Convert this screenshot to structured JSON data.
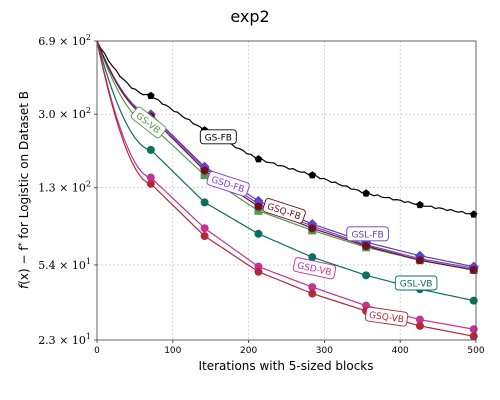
{
  "chart_data": {
    "type": "line",
    "title": "exp2",
    "xlabel": "Iterations with 5-sized blocks",
    "ylabel": "f(x) − f* for Logistic on Dataset B",
    "ylabel_parts": {
      "a": "f",
      "b": "(x) − f",
      "c": "*",
      "d": " for Logistic on Dataset B"
    },
    "xlim": [
      0,
      500
    ],
    "ylim": [
      23,
      690
    ],
    "yscale": "log",
    "grid": true,
    "x_ticks": [
      {
        "value": 0,
        "label": "0"
      },
      {
        "value": 100,
        "label": "100"
      },
      {
        "value": 200,
        "label": "200"
      },
      {
        "value": 300,
        "label": "300"
      },
      {
        "value": 400,
        "label": "400"
      },
      {
        "value": 500,
        "label": "500"
      }
    ],
    "y_ticks": [
      {
        "value": 690,
        "mantissa": "6.9",
        "exp": "2"
      },
      {
        "value": 300,
        "mantissa": "3.0",
        "exp": "2"
      },
      {
        "value": 130,
        "mantissa": "1.3",
        "exp": "2"
      },
      {
        "value": 54,
        "mantissa": "5.4",
        "exp": "1"
      },
      {
        "value": 23,
        "mantissa": "2.3",
        "exp": "1"
      }
    ],
    "series": [
      {
        "name": "GS-FB",
        "color": "#000000",
        "marker": "pentagon",
        "label_x": 160,
        "label_y": 232,
        "x": [
          0,
          71,
          142,
          213,
          284,
          355,
          426,
          497
        ],
        "values": [
          690,
          370,
          250,
          180,
          150,
          122,
          107,
          96
        ]
      },
      {
        "name": "GS-VB",
        "color": "#4f9a4f",
        "marker": "square",
        "label_x": 68,
        "label_y": 273,
        "label_rot": 38,
        "x": [
          0,
          71,
          142,
          213,
          284,
          355,
          426,
          497
        ],
        "values": [
          690,
          265,
          150,
          100,
          80,
          66,
          57,
          51
        ]
      },
      {
        "name": "GSL-FB",
        "color": "#5a3fc0",
        "marker": "diamond",
        "label_x": 357,
        "label_y": 77,
        "x": [
          0,
          71,
          142,
          213,
          284,
          355,
          426,
          497
        ],
        "values": [
          690,
          300,
          165,
          112,
          86,
          70,
          60,
          53
        ]
      },
      {
        "name": "GSD-FB",
        "color": "#7b3fd0",
        "marker": "diamond",
        "label_x": 173,
        "label_y": 136,
        "label_rot": 18,
        "x": [
          0,
          71,
          142,
          213,
          284,
          355,
          426,
          497
        ],
        "values": [
          690,
          298,
          162,
          108,
          84,
          68,
          58,
          52
        ]
      },
      {
        "name": "GSQ-FB",
        "color": "#6e1020",
        "marker": "circle",
        "label_x": 247,
        "label_y": 100,
        "label_rot": 18,
        "x": [
          0,
          71,
          142,
          213,
          284,
          355,
          426,
          497
        ],
        "values": [
          690,
          292,
          158,
          105,
          82,
          67,
          57,
          51
        ]
      },
      {
        "name": "GSL-VB",
        "color": "#0b6e5e",
        "marker": "circle",
        "label_x": 421,
        "label_y": 44,
        "x": [
          0,
          71,
          142,
          213,
          284,
          355,
          426,
          497
        ],
        "values": [
          690,
          200,
          110,
          77,
          59,
          48,
          41,
          36
        ]
      },
      {
        "name": "GSD-VB",
        "color": "#c8318f",
        "marker": "circle",
        "label_x": 287,
        "label_y": 52,
        "label_rot": 12,
        "x": [
          0,
          71,
          142,
          213,
          284,
          355,
          426,
          497
        ],
        "values": [
          690,
          146,
          82,
          53,
          42,
          34,
          29,
          26
        ]
      },
      {
        "name": "GSQ-VB",
        "color": "#b02a3a",
        "marker": "circle",
        "label_x": 382,
        "label_y": 30,
        "label_rot": 8,
        "x": [
          0,
          71,
          142,
          213,
          284,
          355,
          426,
          497
        ],
        "values": [
          690,
          136,
          75,
          50,
          39,
          32,
          27,
          24
        ]
      }
    ]
  }
}
